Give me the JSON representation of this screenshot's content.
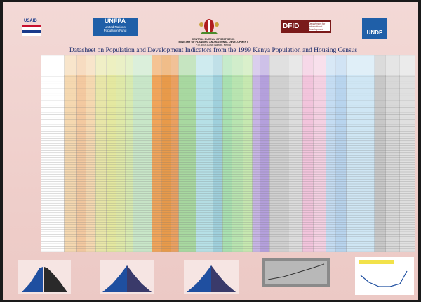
{
  "header": {
    "logos": {
      "usaid": "USAID",
      "unfpa": "UNFPA",
      "unfpa_sub": "United Nations\nPopulation Fund",
      "dfid": "DFID",
      "dfid_sub": "Department for International Development",
      "undp": "UNDP"
    },
    "agency": [
      "CENTRAL BUREAU OF STATISTICS",
      "MINISTRY OF PLANNING AND NATIONAL DEVELOPMENT",
      "P.O.BOX 30266 Nairobi, Kenya"
    ]
  },
  "title": "Datasheet on Population and Development Indicators from the 1999 Kenya Population and Housing Census"
}
